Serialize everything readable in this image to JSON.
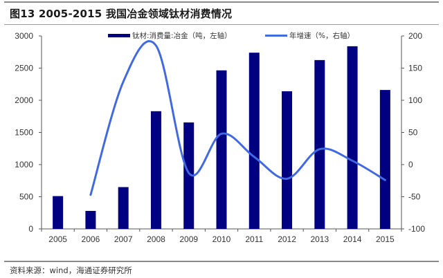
{
  "title": "图13 2005-2015 我国冶金领域钛材消费情况",
  "source": "资料来源：wind，海通证券研究所",
  "colors": {
    "bar": "#000080",
    "line": "#4169e1",
    "axis": "#555555"
  },
  "legend": {
    "bar_label": "钛材:消费量:冶金（吨，左轴）",
    "line_label": "年增速（%，右轴）"
  },
  "chart_data": {
    "type": "bar",
    "title": "图13 2005-2015 我国冶金领域钛材消费情况",
    "xlabel": "",
    "ylabel": "",
    "categories": [
      "2005",
      "2006",
      "2007",
      "2008",
      "2009",
      "2010",
      "2011",
      "2012",
      "2013",
      "2014",
      "2015"
    ],
    "series": [
      {
        "name": "钛材:消费量:冶金（吨，左轴）",
        "type": "bar",
        "axis": "left",
        "values": [
          510,
          280,
          650,
          1830,
          1655,
          2465,
          2740,
          2140,
          2625,
          2840,
          2160
        ]
      },
      {
        "name": "年增速（%，右轴）",
        "type": "line",
        "axis": "right",
        "values": [
          null,
          -47,
          129,
          185,
          -13,
          48,
          12,
          -22,
          24,
          6,
          -24
        ]
      }
    ],
    "ylim": [
      0,
      3000
    ],
    "y_ticks": [
      0,
      500,
      1000,
      1500,
      2000,
      2500,
      3000
    ],
    "y2lim": [
      -100,
      200
    ],
    "y2_ticks": [
      -100,
      -50,
      0,
      50,
      100,
      150,
      200
    ],
    "grid": false,
    "legend_position": "top"
  }
}
